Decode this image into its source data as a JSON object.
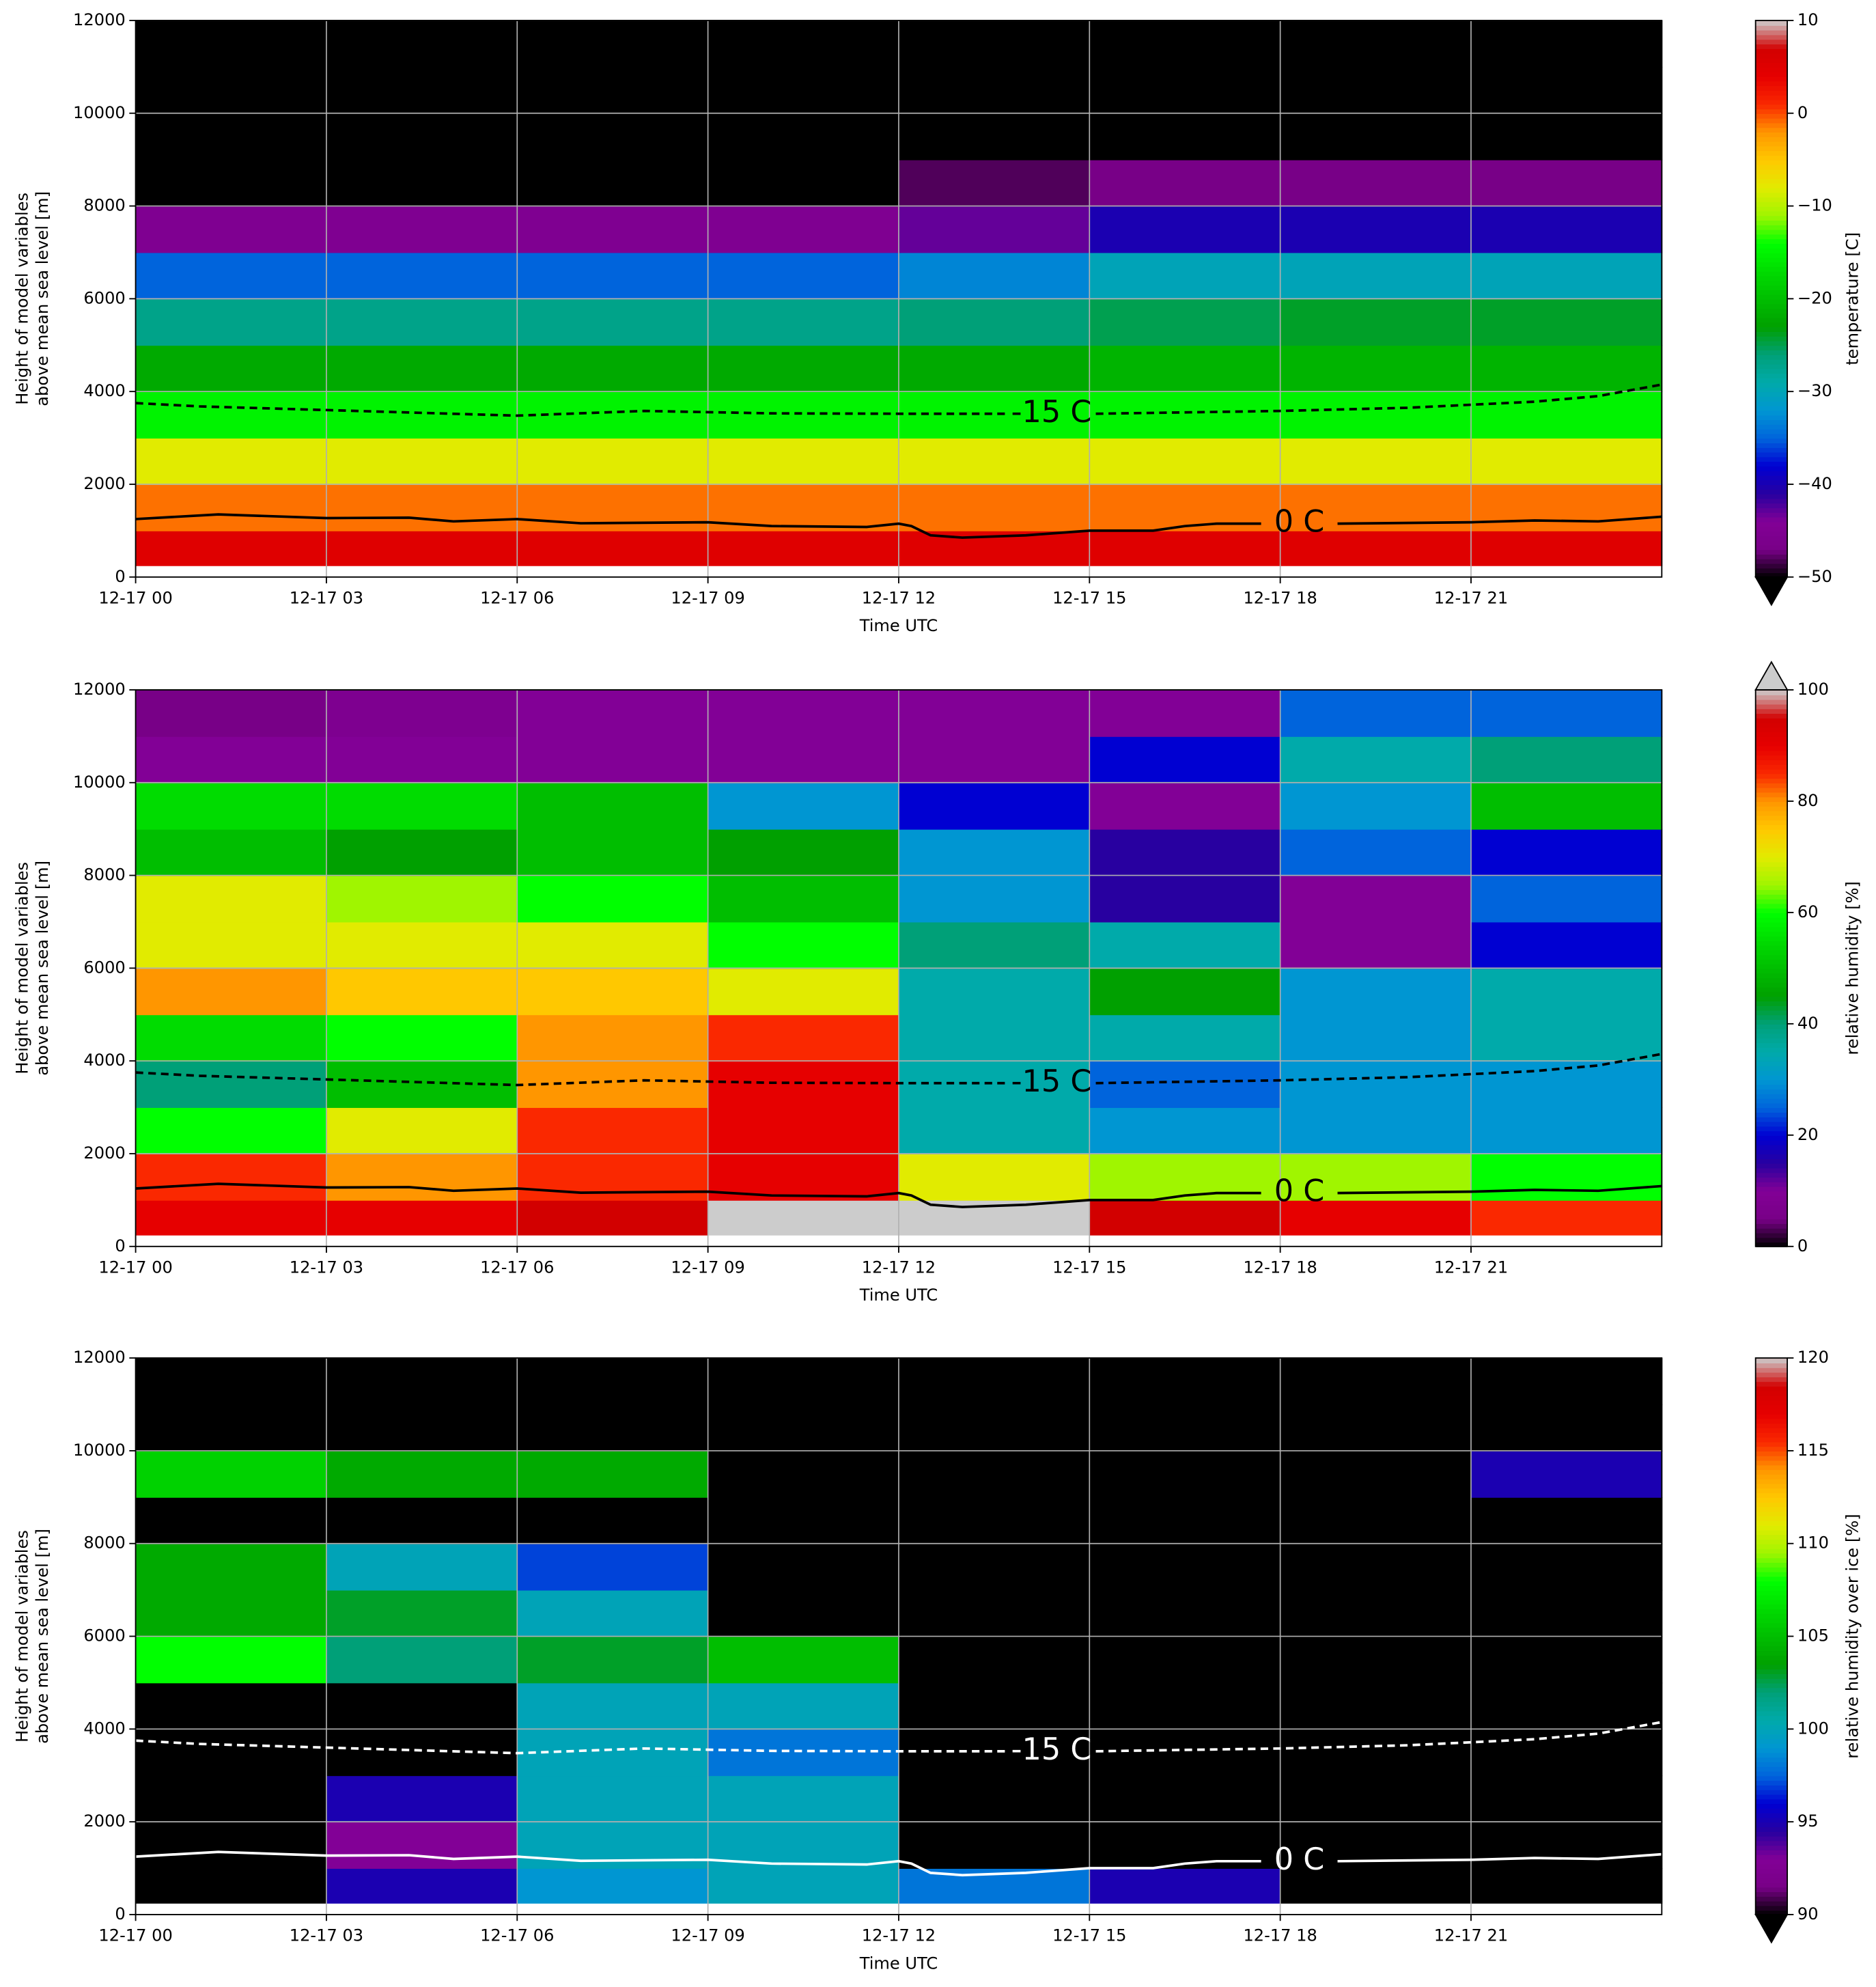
{
  "chart_data": [
    {
      "type": "heatmap",
      "colormap": "nipy_spectral",
      "extend": "min",
      "grid": true,
      "xlabel": "Time UTC",
      "ylabel": [
        "Height of model variables",
        "above mean sea level [m]"
      ],
      "colorbar_label": "temperature [C]",
      "xlim": [
        0,
        24
      ],
      "ylim": [
        0,
        12000
      ],
      "xticks": [
        {
          "value": 0,
          "label": "12-17 00"
        },
        {
          "value": 3,
          "label": "12-17 03"
        },
        {
          "value": 6,
          "label": "12-17 06"
        },
        {
          "value": 9,
          "label": "12-17 09"
        },
        {
          "value": 12,
          "label": "12-17 12"
        },
        {
          "value": 15,
          "label": "12-17 15"
        },
        {
          "value": 18,
          "label": "12-17 18"
        },
        {
          "value": 21,
          "label": "12-17 21"
        }
      ],
      "yticks": [
        0,
        2000,
        4000,
        6000,
        8000,
        10000,
        12000
      ],
      "zlim": [
        -50,
        10
      ],
      "zticks": [
        {
          "value": -50,
          "label": "−50"
        },
        {
          "value": -40,
          "label": "−40"
        },
        {
          "value": -30,
          "label": "−30"
        },
        {
          "value": -20,
          "label": "−20"
        },
        {
          "value": -10,
          "label": "−10"
        },
        0,
        10
      ],
      "x_edges": [
        0,
        3,
        6,
        9,
        12,
        15,
        18,
        21,
        24
      ],
      "y_edges": [
        250,
        1000,
        2000,
        3000,
        4000,
        5000,
        6000,
        7000,
        8000,
        9000,
        10000,
        11000,
        12000
      ],
      "z": [
        [
          5,
          5,
          5,
          5,
          5,
          5,
          5,
          5
        ],
        [
          -1,
          -1,
          -1,
          -1,
          -1,
          -1,
          -1,
          -1
        ],
        [
          -8,
          -8,
          -8,
          -8,
          -8,
          -8,
          -8,
          -8
        ],
        [
          -15,
          -15,
          -15,
          -15,
          -15,
          -15,
          -15,
          -15
        ],
        [
          -22,
          -22,
          -22,
          -22,
          -22,
          -21,
          -21,
          -21
        ],
        [
          -27,
          -27,
          -27,
          -27,
          -26,
          -25,
          -24,
          -24
        ],
        [
          -35,
          -35,
          -35,
          -35,
          -33,
          -30,
          -30,
          -30
        ],
        [
          -45,
          -45,
          -45,
          -45,
          -43,
          -40,
          -40,
          -40
        ],
        [
          -55,
          -55,
          -55,
          -55,
          -48,
          -47,
          -47,
          -47
        ],
        [
          -55,
          -55,
          -55,
          -55,
          -55,
          -55,
          -55,
          -55
        ],
        [
          -55,
          -55,
          -55,
          -55,
          -55,
          -55,
          -55,
          -55
        ],
        [
          -55,
          -55,
          -55,
          -55,
          -55,
          -55,
          -55,
          -55
        ]
      ],
      "contours": [
        {
          "name": "0 C",
          "color": "#000000",
          "dash": false,
          "x": [
            0,
            1.3,
            3,
            4.3,
            5,
            6,
            7,
            9,
            10,
            11.5,
            12,
            12.2,
            12.5,
            13,
            14,
            15,
            16,
            16.5,
            17,
            17.7,
            18.3,
            18.9,
            21,
            22,
            23,
            24
          ],
          "values": [
            1250,
            1350,
            1270,
            1280,
            1200,
            1250,
            1160,
            1180,
            1100,
            1080,
            1150,
            1100,
            900,
            850,
            900,
            1000,
            1000,
            1100,
            1150,
            1150,
            null,
            1150,
            1180,
            1220,
            1200,
            1300
          ]
        },
        {
          "name": "-15 C",
          "color": "#000000",
          "dash": true,
          "x": [
            0,
            1,
            3,
            6,
            8,
            10,
            12,
            13.7,
            14.4,
            15.1,
            18,
            20,
            22,
            23,
            24
          ],
          "values": [
            3750,
            3680,
            3600,
            3480,
            3580,
            3530,
            3520,
            3520,
            null,
            3520,
            3580,
            3650,
            3780,
            3900,
            4150
          ]
        }
      ]
    },
    {
      "type": "heatmap",
      "colormap": "nipy_spectral",
      "extend": "max",
      "grid": true,
      "xlabel": "Time UTC",
      "ylabel": [
        "Height of model variables",
        "above mean sea level [m]"
      ],
      "colorbar_label": "relative humidity [%]",
      "xlim": [
        0,
        24
      ],
      "ylim": [
        0,
        12000
      ],
      "xticks": [
        {
          "value": 0,
          "label": "12-17 00"
        },
        {
          "value": 3,
          "label": "12-17 03"
        },
        {
          "value": 6,
          "label": "12-17 06"
        },
        {
          "value": 9,
          "label": "12-17 09"
        },
        {
          "value": 12,
          "label": "12-17 12"
        },
        {
          "value": 15,
          "label": "12-17 15"
        },
        {
          "value": 18,
          "label": "12-17 18"
        },
        {
          "value": 21,
          "label": "12-17 21"
        }
      ],
      "yticks": [
        0,
        2000,
        4000,
        6000,
        8000,
        10000,
        12000
      ],
      "zlim": [
        0,
        100
      ],
      "zticks": [
        0,
        20,
        40,
        60,
        80,
        100
      ],
      "x_edges": [
        0,
        3,
        6,
        9,
        12,
        15,
        18,
        21,
        24
      ],
      "y_edges": [
        250,
        1000,
        2000,
        3000,
        4000,
        5000,
        6000,
        7000,
        8000,
        9000,
        10000,
        11000,
        12000
      ],
      "z": [
        [
          90,
          90,
          95,
          100,
          100,
          95,
          90,
          85
        ],
        [
          85,
          80,
          85,
          90,
          70,
          65,
          65,
          60
        ],
        [
          60,
          70,
          85,
          90,
          35,
          30,
          30,
          30
        ],
        [
          40,
          50,
          80,
          90,
          35,
          25,
          30,
          30
        ],
        [
          55,
          60,
          80,
          85,
          35,
          35,
          30,
          35
        ],
        [
          80,
          75,
          75,
          70,
          35,
          45,
          30,
          35
        ],
        [
          70,
          70,
          70,
          60,
          40,
          35,
          10,
          20
        ],
        [
          70,
          65,
          60,
          50,
          30,
          15,
          10,
          25
        ],
        [
          50,
          45,
          50,
          45,
          30,
          15,
          25,
          20
        ],
        [
          55,
          55,
          50,
          30,
          20,
          10,
          30,
          50
        ],
        [
          10,
          10,
          10,
          10,
          10,
          20,
          35,
          40
        ],
        [
          5,
          8,
          10,
          10,
          10,
          10,
          25,
          25
        ]
      ],
      "contours": [
        {
          "name": "0 C",
          "color": "#000000",
          "dash": false,
          "x": [
            0,
            1.3,
            3,
            4.3,
            5,
            6,
            7,
            9,
            10,
            11.5,
            12,
            12.2,
            12.5,
            13,
            14,
            15,
            16,
            16.5,
            17,
            17.7,
            18.3,
            18.9,
            21,
            22,
            23,
            24
          ],
          "values": [
            1250,
            1350,
            1270,
            1280,
            1200,
            1250,
            1160,
            1180,
            1100,
            1080,
            1150,
            1100,
            900,
            850,
            900,
            1000,
            1000,
            1100,
            1150,
            1150,
            null,
            1150,
            1180,
            1220,
            1200,
            1300
          ]
        },
        {
          "name": "-15 C",
          "color": "#000000",
          "dash": true,
          "x": [
            0,
            1,
            3,
            6,
            8,
            10,
            12,
            13.7,
            14.4,
            15.1,
            18,
            20,
            22,
            23,
            24
          ],
          "values": [
            3750,
            3680,
            3600,
            3480,
            3580,
            3530,
            3520,
            3520,
            null,
            3520,
            3580,
            3650,
            3780,
            3900,
            4150
          ]
        }
      ]
    },
    {
      "type": "heatmap",
      "colormap": "nipy_spectral",
      "extend": "min",
      "grid": true,
      "xlabel": "Time UTC",
      "ylabel": [
        "Height of model variables",
        "above mean sea level [m]"
      ],
      "colorbar_label": "relative humidity over ice [%]",
      "xlim": [
        0,
        24
      ],
      "ylim": [
        0,
        12000
      ],
      "xticks": [
        {
          "value": 0,
          "label": "12-17 00"
        },
        {
          "value": 3,
          "label": "12-17 03"
        },
        {
          "value": 6,
          "label": "12-17 06"
        },
        {
          "value": 9,
          "label": "12-17 09"
        },
        {
          "value": 12,
          "label": "12-17 12"
        },
        {
          "value": 15,
          "label": "12-17 15"
        },
        {
          "value": 18,
          "label": "12-17 18"
        },
        {
          "value": 21,
          "label": "12-17 21"
        }
      ],
      "yticks": [
        0,
        2000,
        4000,
        6000,
        8000,
        10000,
        12000
      ],
      "zlim": [
        90,
        120
      ],
      "zticks": [
        90,
        95,
        100,
        105,
        110,
        115,
        120
      ],
      "x_edges": [
        0,
        3,
        6,
        9,
        12,
        15,
        18,
        21,
        24
      ],
      "y_edges": [
        250,
        1000,
        2000,
        3000,
        4000,
        5000,
        6000,
        7000,
        8000,
        9000,
        10000,
        11000,
        12000
      ],
      "z": [
        [
          85,
          95,
          99,
          100,
          98,
          95,
          88,
          85
        ],
        [
          85,
          93,
          100,
          100,
          85,
          85,
          85,
          85
        ],
        [
          85,
          95,
          100,
          100,
          85,
          85,
          85,
          85
        ],
        [
          85,
          85,
          100,
          98,
          85,
          85,
          85,
          85
        ],
        [
          85,
          85,
          100,
          100,
          85,
          85,
          85,
          85
        ],
        [
          108,
          102,
          103,
          105,
          85,
          85,
          85,
          85
        ],
        [
          104,
          103,
          100,
          85,
          85,
          85,
          85,
          85
        ],
        [
          104,
          100,
          97,
          85,
          85,
          85,
          85,
          85
        ],
        [
          85,
          85,
          85,
          85,
          85,
          85,
          85,
          85
        ],
        [
          106,
          104,
          104,
          85,
          85,
          85,
          85,
          95
        ],
        [
          85,
          85,
          85,
          85,
          85,
          85,
          85,
          85
        ],
        [
          85,
          85,
          85,
          85,
          85,
          85,
          85,
          85
        ]
      ],
      "contours": [
        {
          "name": "0 C",
          "color": "#ffffff",
          "dash": false,
          "x": [
            0,
            1.3,
            3,
            4.3,
            5,
            6,
            7,
            9,
            10,
            11.5,
            12,
            12.2,
            12.5,
            13,
            14,
            15,
            16,
            16.5,
            17,
            17.7,
            18.3,
            18.9,
            21,
            22,
            23,
            24
          ],
          "values": [
            1250,
            1350,
            1270,
            1280,
            1200,
            1250,
            1160,
            1180,
            1100,
            1080,
            1150,
            1100,
            900,
            850,
            900,
            1000,
            1000,
            1100,
            1150,
            1150,
            null,
            1150,
            1180,
            1220,
            1200,
            1300
          ]
        },
        {
          "name": "-15 C",
          "color": "#ffffff",
          "dash": true,
          "x": [
            0,
            1,
            3,
            6,
            8,
            10,
            12,
            13.7,
            14.4,
            15.1,
            18,
            20,
            22,
            23,
            24
          ],
          "values": [
            3750,
            3680,
            3600,
            3480,
            3580,
            3530,
            3520,
            3520,
            null,
            3520,
            3580,
            3650,
            3780,
            3900,
            4150
          ]
        }
      ]
    }
  ]
}
